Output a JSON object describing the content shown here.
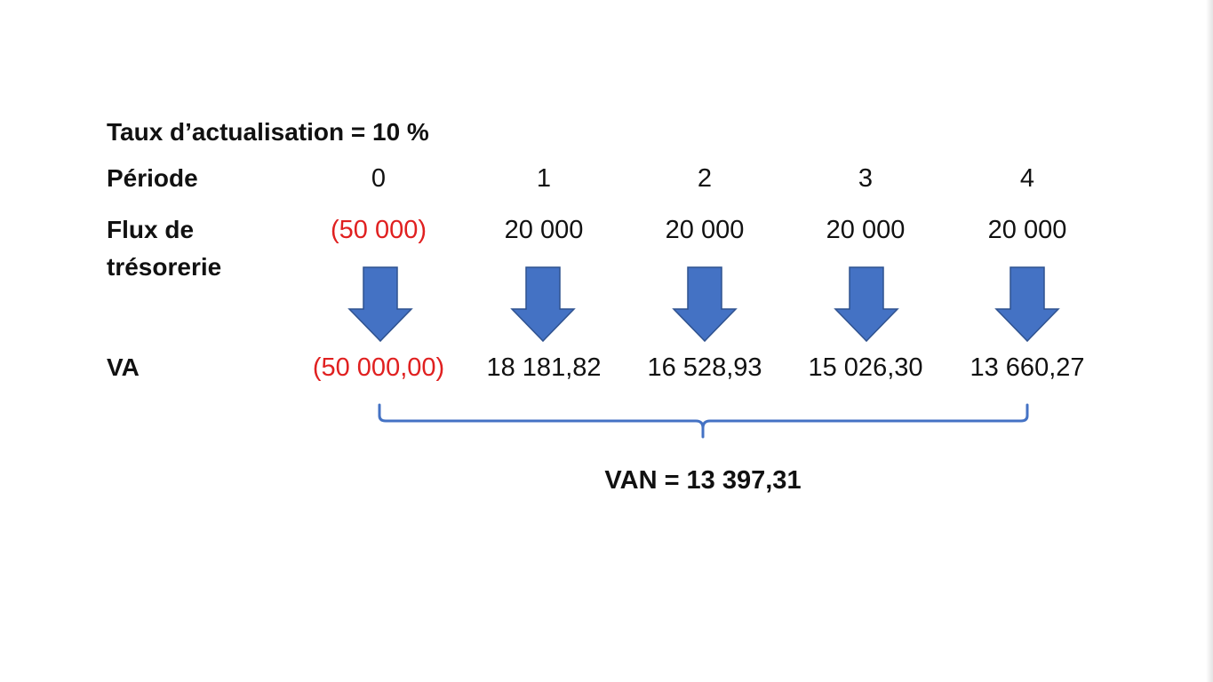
{
  "title": "Taux d’actualisation = 10 %",
  "row_labels": {
    "period": "Période",
    "cash_flow_line1": "Flux de",
    "cash_flow_line2": "trésorerie",
    "present_value": "VA"
  },
  "periods": [
    "0",
    "1",
    "2",
    "3",
    "4"
  ],
  "cash_flows": [
    "(50 000)",
    "20 000",
    "20 000",
    "20 000",
    "20 000"
  ],
  "present_values": [
    "(50 000,00)",
    "18 181,82",
    "16 528,93",
    "15 026,30",
    "13 660,27"
  ],
  "npv": "VAN = 13 397,31",
  "colors": {
    "arrow_fill": "#4472c4",
    "arrow_stroke": "#2f528f",
    "negative": "#e02020",
    "text": "#111111"
  },
  "icons": {
    "discount_arrow": "arrow-down-icon",
    "sum_brace": "curly-brace-icon"
  }
}
